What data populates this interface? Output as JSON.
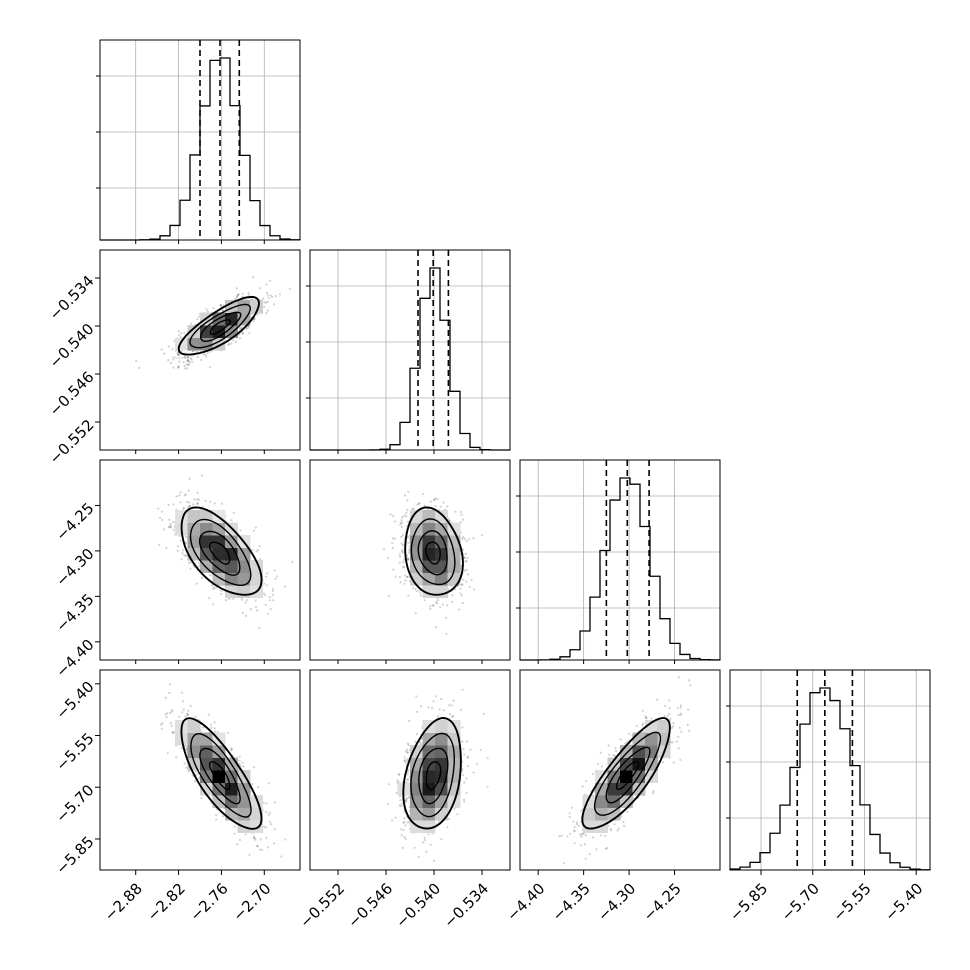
{
  "chart_data": {
    "type": "corner",
    "grid": true,
    "quantiles_shown": [
      0.16,
      0.5,
      0.84
    ],
    "parameters": [
      {
        "range": [
          -2.93,
          -2.65
        ],
        "ticks": [
          -2.88,
          -2.82,
          -2.76,
          -2.7
        ],
        "tick_labels": [
          "−2.88",
          "−2.82",
          "−2.76",
          "−2.70"
        ],
        "mean": -2.762,
        "sd": 0.028,
        "quantiles": [
          -2.79,
          -2.762,
          -2.735
        ]
      },
      {
        "range": [
          -0.5555,
          -0.5305
        ],
        "ticks": [
          -0.552,
          -0.546,
          -0.54,
          -0.534
        ],
        "tick_labels": [
          "−0.552",
          "−0.546",
          "−0.540",
          "−0.534"
        ],
        "mean": -0.5401,
        "sd": 0.0018,
        "quantiles": [
          -0.542,
          -0.5401,
          -0.5382
        ]
      },
      {
        "range": [
          -4.42,
          -4.2
        ],
        "ticks": [
          -4.4,
          -4.35,
          -4.3,
          -4.25
        ],
        "tick_labels": [
          "−4.40",
          "−4.35",
          "−4.30",
          "−4.25"
        ],
        "mean": -4.302,
        "sd": 0.024,
        "quantiles": [
          -4.325,
          -4.302,
          -4.278
        ]
      },
      {
        "range": [
          -5.94,
          -5.36
        ],
        "ticks": [
          -5.85,
          -5.7,
          -5.55,
          -5.4
        ],
        "tick_labels": [
          "−5.85",
          "−5.70",
          "−5.55",
          "−5.40"
        ],
        "mean": -5.665,
        "sd": 0.08,
        "quantiles": [
          -5.745,
          -5.665,
          -5.585
        ]
      }
    ],
    "correlations": [
      [
        0,
        1,
        0.78
      ],
      [
        0,
        2,
        -0.6
      ],
      [
        1,
        2,
        -0.18
      ],
      [
        0,
        3,
        -0.78
      ],
      [
        1,
        3,
        0.3
      ],
      [
        2,
        3,
        0.82
      ]
    ],
    "histogram_bins": 20,
    "contour_levels": [
      0.5,
      1.0,
      1.5,
      2.0
    ]
  }
}
